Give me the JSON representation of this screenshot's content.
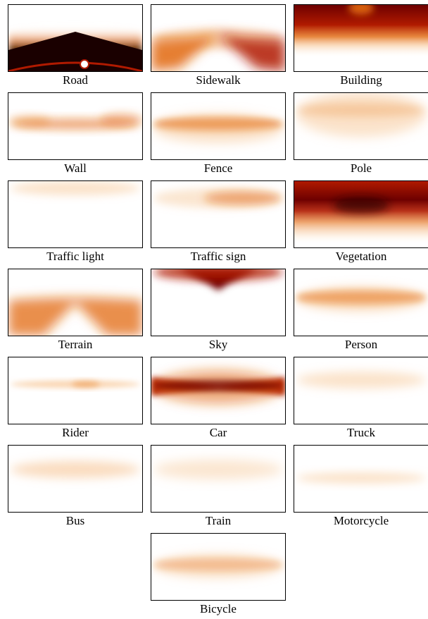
{
  "panels": [
    {
      "label": "Road",
      "map": "road"
    },
    {
      "label": "Sidewalk",
      "map": "sidewalk"
    },
    {
      "label": "Building",
      "map": "building"
    },
    {
      "label": "Wall",
      "map": "wall"
    },
    {
      "label": "Fence",
      "map": "fence"
    },
    {
      "label": "Pole",
      "map": "pole"
    },
    {
      "label": "Traffic light",
      "map": "traffic-light"
    },
    {
      "label": "Traffic sign",
      "map": "traffic-sign"
    },
    {
      "label": "Vegetation",
      "map": "vegetation"
    },
    {
      "label": "Terrain",
      "map": "terrain"
    },
    {
      "label": "Sky",
      "map": "sky"
    },
    {
      "label": "Person",
      "map": "person"
    },
    {
      "label": "Rider",
      "map": "rider"
    },
    {
      "label": "Car",
      "map": "car"
    },
    {
      "label": "Truck",
      "map": "truck"
    },
    {
      "label": "Bus",
      "map": "bus"
    },
    {
      "label": "Train",
      "map": "train"
    },
    {
      "label": "Motorcycle",
      "map": "motorcycle"
    },
    {
      "label": "Bicycle",
      "map": "bicycle"
    }
  ],
  "palette": {
    "dark": "#1a0000",
    "deep": "#6e0000",
    "red": "#b01a00",
    "orange": "#e2690f",
    "pale": "#f6c08a",
    "white": "#ffffff"
  }
}
